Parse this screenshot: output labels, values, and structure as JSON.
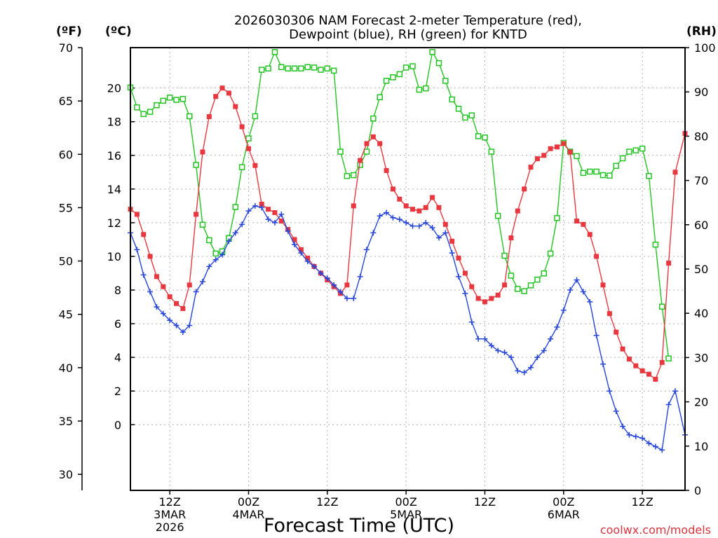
{
  "chart_data": {
    "type": "line",
    "title_lines": [
      "2026030306 NAM Forecast 2-meter Temperature (red),",
      "Dewpoint (blue), RH (green) for KNTD"
    ],
    "xlabel": "Forecast Time (UTC)",
    "credit": "coolwx.com/models",
    "units": {
      "f": "(ºF)",
      "c": "(ºC)",
      "rh": "(RH)"
    },
    "colors": {
      "temperature": "#e8373f",
      "dewpoint": "#2645d9",
      "rh": "#22c422",
      "grid": "#b0b0b0"
    },
    "axes": {
      "x_range_hours": [
        6,
        90.5
      ],
      "c_range": [
        -3.9,
        22.4
      ],
      "f_range": [
        28.5,
        70
      ],
      "rh_range": [
        0,
        100
      ],
      "c_ticks": [
        "0",
        "2",
        "4",
        "6",
        "8",
        "10",
        "12",
        "14",
        "16",
        "18",
        "20"
      ],
      "f_ticks": [
        "30",
        "35",
        "40",
        "45",
        "50",
        "55",
        "60",
        "65",
        "70"
      ],
      "rh_ticks": [
        "0",
        "10",
        "20",
        "30",
        "40",
        "50",
        "60",
        "70",
        "80",
        "90",
        "100"
      ],
      "x_ticks": [
        {
          "hour": 12,
          "lines": [
            "12Z",
            "3MAR",
            "2026"
          ]
        },
        {
          "hour": 24,
          "lines": [
            "00Z",
            "4MAR"
          ]
        },
        {
          "hour": 36,
          "lines": [
            "12Z"
          ]
        },
        {
          "hour": 48,
          "lines": [
            "00Z",
            "5MAR"
          ]
        },
        {
          "hour": 60,
          "lines": [
            "12Z"
          ]
        },
        {
          "hour": 72,
          "lines": [
            "00Z",
            "6MAR"
          ]
        },
        {
          "hour": 84,
          "lines": [
            "12Z"
          ]
        }
      ]
    },
    "series": [
      {
        "key": "temperature",
        "unit": "C",
        "marker": "filled-square",
        "points": [
          [
            6,
            12.8
          ],
          [
            7,
            12.5
          ],
          [
            8,
            11.3
          ],
          [
            9,
            10.0
          ],
          [
            10,
            8.8
          ],
          [
            11,
            8.2
          ],
          [
            12,
            7.6
          ],
          [
            13,
            7.2
          ],
          [
            14,
            6.9
          ],
          [
            15,
            8.3
          ],
          [
            16,
            12.5
          ],
          [
            17,
            16.2
          ],
          [
            18,
            18.3
          ],
          [
            19,
            19.5
          ],
          [
            20,
            20.0
          ],
          [
            21,
            19.7
          ],
          [
            22,
            18.9
          ],
          [
            23,
            17.7
          ],
          [
            24,
            16.4
          ],
          [
            25,
            15.4
          ],
          [
            26,
            13.1
          ],
          [
            27,
            12.8
          ],
          [
            28,
            12.6
          ],
          [
            29,
            12.1
          ],
          [
            30,
            11.6
          ],
          [
            31,
            11.0
          ],
          [
            32,
            10.4
          ],
          [
            33,
            9.9
          ],
          [
            34,
            9.4
          ],
          [
            35,
            9.0
          ],
          [
            36,
            8.6
          ],
          [
            37,
            8.2
          ],
          [
            38,
            7.8
          ],
          [
            39,
            8.3
          ],
          [
            40,
            13.0
          ],
          [
            41,
            15.7
          ],
          [
            42,
            16.7
          ],
          [
            43,
            17.1
          ],
          [
            44,
            16.7
          ],
          [
            45,
            15.1
          ],
          [
            46,
            14.0
          ],
          [
            47,
            13.4
          ],
          [
            48,
            13.0
          ],
          [
            49,
            12.8
          ],
          [
            50,
            12.7
          ],
          [
            51,
            12.9
          ],
          [
            52,
            13.5
          ],
          [
            53,
            12.9
          ],
          [
            54,
            11.9
          ],
          [
            55,
            10.9
          ],
          [
            56,
            9.9
          ],
          [
            57,
            9.0
          ],
          [
            58,
            8.2
          ],
          [
            59,
            7.5
          ],
          [
            60,
            7.3
          ],
          [
            61,
            7.5
          ],
          [
            62,
            7.7
          ],
          [
            63,
            8.3
          ],
          [
            64,
            11.1
          ],
          [
            65,
            12.7
          ],
          [
            66,
            14.0
          ],
          [
            67,
            15.3
          ],
          [
            68,
            15.8
          ],
          [
            69,
            16.0
          ],
          [
            70,
            16.4
          ],
          [
            71,
            16.5
          ],
          [
            72,
            16.7
          ],
          [
            73,
            16.2
          ],
          [
            74,
            12.1
          ],
          [
            75,
            11.9
          ],
          [
            76,
            11.3
          ],
          [
            77,
            10.0
          ],
          [
            78,
            8.3
          ],
          [
            79,
            6.6
          ],
          [
            80,
            5.5
          ],
          [
            81,
            4.5
          ],
          [
            82,
            3.9
          ],
          [
            83,
            3.5
          ],
          [
            84,
            3.2
          ],
          [
            85,
            3.0
          ],
          [
            86,
            2.7
          ],
          [
            87,
            3.7
          ],
          [
            88,
            9.6
          ],
          [
            89,
            15.0
          ],
          [
            90.5,
            17.3
          ]
        ]
      },
      {
        "key": "dewpoint",
        "unit": "C",
        "marker": "plus",
        "points": [
          [
            6,
            11.4
          ],
          [
            7,
            10.4
          ],
          [
            8,
            8.9
          ],
          [
            9,
            7.9
          ],
          [
            10,
            7.0
          ],
          [
            11,
            6.6
          ],
          [
            12,
            6.2
          ],
          [
            13,
            5.9
          ],
          [
            14,
            5.5
          ],
          [
            15,
            5.9
          ],
          [
            16,
            7.9
          ],
          [
            17,
            8.5
          ],
          [
            18,
            9.4
          ],
          [
            19,
            9.8
          ],
          [
            20,
            10.1
          ],
          [
            21,
            10.9
          ],
          [
            22,
            11.4
          ],
          [
            23,
            11.9
          ],
          [
            24,
            12.7
          ],
          [
            25,
            13.0
          ],
          [
            26,
            12.9
          ],
          [
            27,
            12.2
          ],
          [
            28,
            12.0
          ],
          [
            29,
            12.5
          ],
          [
            30,
            11.5
          ],
          [
            31,
            10.7
          ],
          [
            32,
            10.2
          ],
          [
            33,
            9.7
          ],
          [
            34,
            9.4
          ],
          [
            35,
            9.0
          ],
          [
            36,
            8.7
          ],
          [
            37,
            8.3
          ],
          [
            38,
            7.9
          ],
          [
            39,
            7.5
          ],
          [
            40,
            7.5
          ],
          [
            41,
            8.8
          ],
          [
            42,
            10.4
          ],
          [
            43,
            11.4
          ],
          [
            44,
            12.4
          ],
          [
            45,
            12.6
          ],
          [
            46,
            12.3
          ],
          [
            47,
            12.2
          ],
          [
            48,
            12.0
          ],
          [
            49,
            11.8
          ],
          [
            50,
            11.8
          ],
          [
            51,
            12.0
          ],
          [
            52,
            11.7
          ],
          [
            53,
            11.1
          ],
          [
            54,
            11.4
          ],
          [
            55,
            10.2
          ],
          [
            56,
            8.8
          ],
          [
            57,
            7.8
          ],
          [
            58,
            6.1
          ],
          [
            59,
            5.1
          ],
          [
            60,
            5.1
          ],
          [
            61,
            4.7
          ],
          [
            62,
            4.4
          ],
          [
            63,
            4.3
          ],
          [
            64,
            4.0
          ],
          [
            65,
            3.2
          ],
          [
            66,
            3.1
          ],
          [
            67,
            3.4
          ],
          [
            68,
            4.0
          ],
          [
            69,
            4.4
          ],
          [
            70,
            5.1
          ],
          [
            71,
            5.8
          ],
          [
            72,
            6.8
          ],
          [
            73,
            8.0
          ],
          [
            74,
            8.6
          ],
          [
            75,
            7.9
          ],
          [
            76,
            7.3
          ],
          [
            77,
            5.3
          ],
          [
            78,
            3.6
          ],
          [
            79,
            2.0
          ],
          [
            80,
            0.8
          ],
          [
            81,
            -0.1
          ],
          [
            82,
            -0.6
          ],
          [
            83,
            -0.7
          ],
          [
            84,
            -0.8
          ],
          [
            85,
            -1.1
          ],
          [
            86,
            -1.3
          ],
          [
            87,
            -1.5
          ],
          [
            88,
            1.2
          ],
          [
            89,
            2.0
          ],
          [
            90.5,
            -0.6
          ]
        ]
      },
      {
        "key": "rh",
        "unit": "RH",
        "marker": "open-square",
        "points": [
          [
            6,
            91
          ],
          [
            7,
            86.5
          ],
          [
            8,
            85
          ],
          [
            9,
            85.5
          ],
          [
            10,
            87
          ],
          [
            11,
            88
          ],
          [
            12,
            88.7
          ],
          [
            13,
            88.2
          ],
          [
            14,
            88.4
          ],
          [
            15,
            84.5
          ],
          [
            16,
            73.5
          ],
          [
            17,
            60
          ],
          [
            18,
            56.5
          ],
          [
            19,
            53.5
          ],
          [
            20,
            54
          ],
          [
            21,
            57
          ],
          [
            22,
            64
          ],
          [
            23,
            73
          ],
          [
            24,
            79.5
          ],
          [
            25,
            84.5
          ],
          [
            26,
            95
          ],
          [
            27,
            95.3
          ],
          [
            28,
            99
          ],
          [
            29,
            95.6
          ],
          [
            30,
            95.3
          ],
          [
            31,
            95.3
          ],
          [
            32,
            95.3
          ],
          [
            33,
            95.6
          ],
          [
            34,
            95.5
          ],
          [
            35,
            95
          ],
          [
            36,
            95.3
          ],
          [
            37,
            94.8
          ],
          [
            38,
            76.5
          ],
          [
            39,
            71
          ],
          [
            40,
            71.2
          ],
          [
            41,
            73.5
          ],
          [
            42,
            76.5
          ],
          [
            43,
            84
          ],
          [
            44,
            88.8
          ],
          [
            45,
            92.5
          ],
          [
            46,
            93.3
          ],
          [
            47,
            94
          ],
          [
            48,
            95.5
          ],
          [
            49,
            95.8
          ],
          [
            50,
            90.5
          ],
          [
            51,
            90.8
          ],
          [
            52,
            99
          ],
          [
            53,
            96.5
          ],
          [
            54,
            92.5
          ],
          [
            55,
            88.3
          ],
          [
            56,
            86.2
          ],
          [
            57,
            84.2
          ],
          [
            58,
            84.7
          ],
          [
            59,
            80
          ],
          [
            60,
            79.7
          ],
          [
            61,
            76.5
          ],
          [
            62,
            62
          ],
          [
            63,
            53
          ],
          [
            64,
            48.5
          ],
          [
            65,
            45.5
          ],
          [
            66,
            45
          ],
          [
            67,
            46.3
          ],
          [
            68,
            47.6
          ],
          [
            69,
            49
          ],
          [
            70,
            53.5
          ],
          [
            71,
            61.5
          ],
          [
            72,
            78.5
          ],
          [
            73,
            76.5
          ],
          [
            74,
            75.5
          ],
          [
            75,
            71.7
          ],
          [
            76,
            72
          ],
          [
            77,
            72
          ],
          [
            78,
            71.2
          ],
          [
            79,
            71.1
          ],
          [
            80,
            73.3
          ],
          [
            81,
            75
          ],
          [
            82,
            76.5
          ],
          [
            83,
            76.8
          ],
          [
            84,
            77.2
          ],
          [
            85,
            71
          ],
          [
            86,
            55.5
          ],
          [
            87,
            41.5
          ],
          [
            88,
            29.8
          ]
        ]
      }
    ]
  }
}
